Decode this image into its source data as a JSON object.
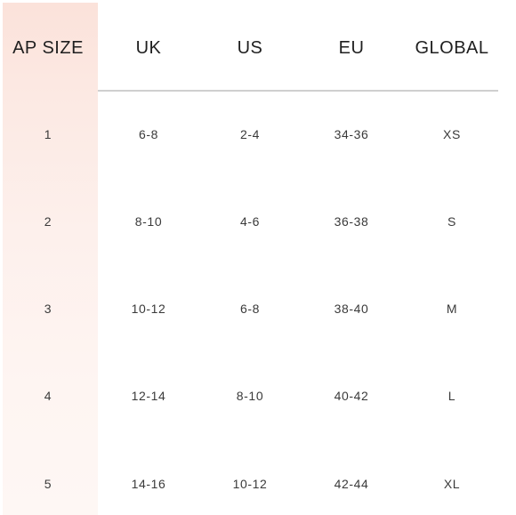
{
  "table": {
    "headers": [
      "AP SIZE",
      "UK",
      "US",
      "EU",
      "GLOBAL"
    ],
    "rows": [
      [
        "1",
        "6-8",
        "2-4",
        "34-36",
        "XS"
      ],
      [
        "2",
        "8-10",
        "4-6",
        "36-38",
        "S"
      ],
      [
        "3",
        "10-12",
        "6-8",
        "38-40",
        "M"
      ],
      [
        "4",
        "12-14",
        "8-10",
        "40-42",
        "L"
      ],
      [
        "5",
        "14-16",
        "10-12",
        "42-44",
        "XL"
      ]
    ]
  },
  "colors": {
    "highlight": "#fce9e3",
    "divider": "#cfcfcf",
    "text": "#2a2a2a"
  }
}
